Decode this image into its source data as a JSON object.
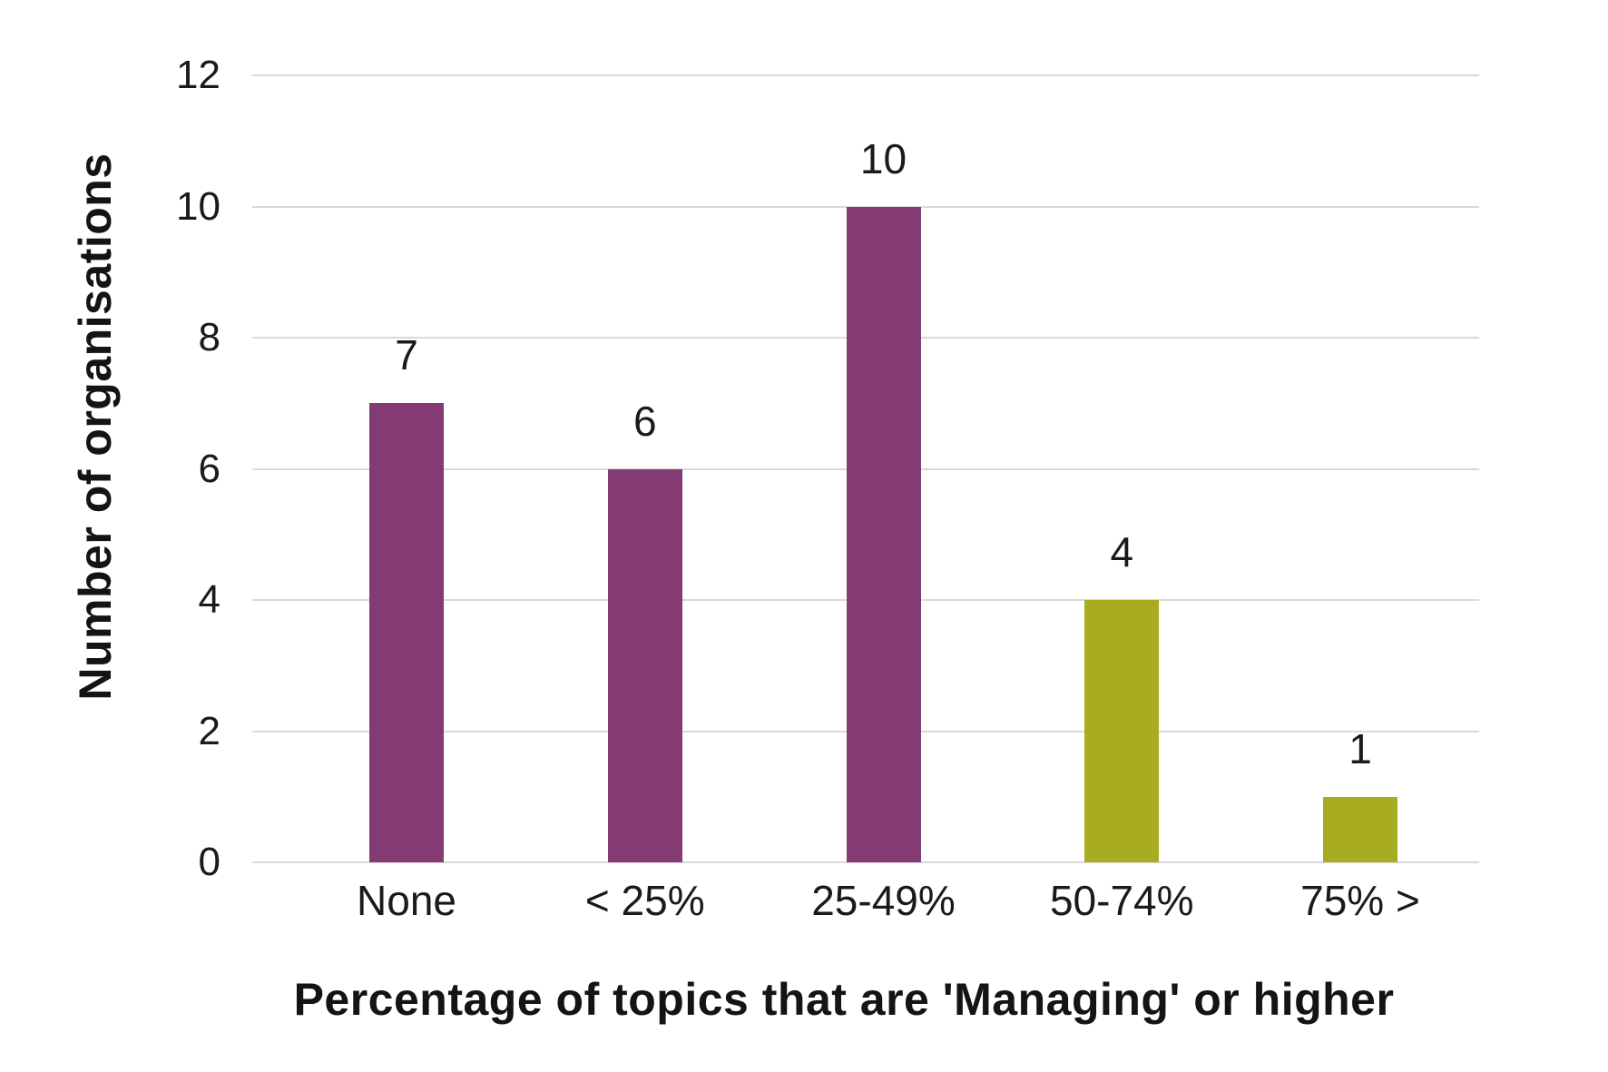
{
  "chart_data": {
    "type": "bar",
    "title": "",
    "xlabel": "Percentage of topics that are 'Managing' or higher",
    "ylabel": "Number of organisations",
    "categories": [
      "None",
      "< 25%",
      "25-49%",
      "50-74%",
      "75% >"
    ],
    "values": [
      7,
      6,
      10,
      4,
      1
    ],
    "data_labels": [
      "7",
      "6",
      "10",
      "4",
      "1"
    ],
    "bar_colors": [
      "#843A73",
      "#843A73",
      "#843A73",
      "#A8AC20",
      "#A8AC20"
    ],
    "ylim": [
      0,
      12
    ],
    "yticks": [
      0,
      2,
      4,
      6,
      8,
      10,
      12
    ],
    "grid": "horizontal",
    "legend": "none",
    "colors": {
      "purple_bar": "#843A73",
      "olive_bar": "#A8AC20",
      "gridline": "#D9D9D9",
      "tick_text": "#1A1A1A",
      "title_text": "#141414",
      "background": "#FFFFFF"
    }
  }
}
